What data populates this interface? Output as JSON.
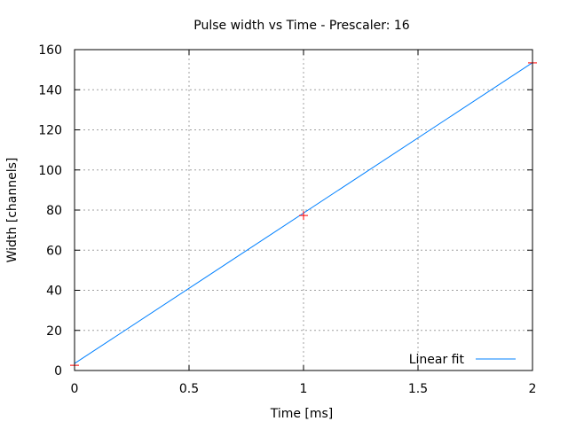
{
  "chart_data": {
    "type": "scatter",
    "title": "Pulse width vs Time - Prescaler: 16",
    "xlabel": "Time [ms]",
    "ylabel": "Width [channels]",
    "xlim": [
      0,
      2
    ],
    "ylim": [
      0,
      160
    ],
    "xticks": [
      "0",
      "0.5",
      "1",
      "1.5",
      "2"
    ],
    "xtick_values": [
      0,
      0.5,
      1,
      1.5,
      2
    ],
    "yticks": [
      "0",
      "20",
      "40",
      "60",
      "80",
      "100",
      "120",
      "140",
      "160"
    ],
    "ytick_values": [
      0,
      20,
      40,
      60,
      80,
      100,
      120,
      140,
      160
    ],
    "grid": true,
    "legend_position": "bottom-right",
    "points": {
      "x": [
        0,
        1,
        2
      ],
      "y": [
        2.6,
        77.3,
        153.4
      ],
      "color": "#ff0000",
      "marker": "plus"
    },
    "series": [
      {
        "name": "Linear fit",
        "type": "line",
        "x": [
          0,
          2
        ],
        "y": [
          3.5,
          153.5
        ],
        "color": "#0080ff"
      }
    ]
  }
}
